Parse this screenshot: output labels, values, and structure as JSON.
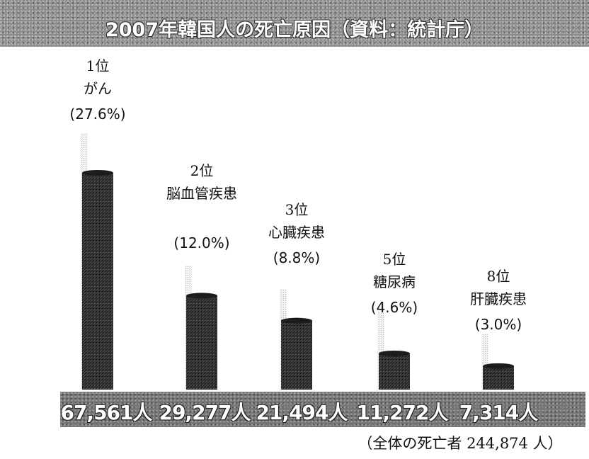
{
  "title": "2007年韓国人の死亡原因（資料：統計庁）",
  "footnote": "（全体の死亡者 244,874 人）",
  "colors": {
    "bar": "#2e2e2e",
    "track": "#d6d6d6",
    "banner": "#8a8a8a"
  },
  "chart_data": {
    "type": "bar",
    "title": "2007年韓国人の死亡原因（資料：統計庁）",
    "categories": [
      "がん",
      "脳血管疾患",
      "心臓疾患",
      "糖尿病",
      "肝臓疾患"
    ],
    "ranks": [
      "1位",
      "2位",
      "3位",
      "5位",
      "8位"
    ],
    "percent_labels": [
      "(27.6%)",
      "(12.0%)",
      "(8.8%)",
      "(4.6%)",
      "(3.0%)"
    ],
    "values": [
      67561,
      29277,
      21494,
      11272,
      7314
    ],
    "value_labels": [
      "67,561人",
      "29,277人",
      "21,494人",
      "11,272人",
      "7,314人"
    ],
    "total_deaths": 244874
  }
}
